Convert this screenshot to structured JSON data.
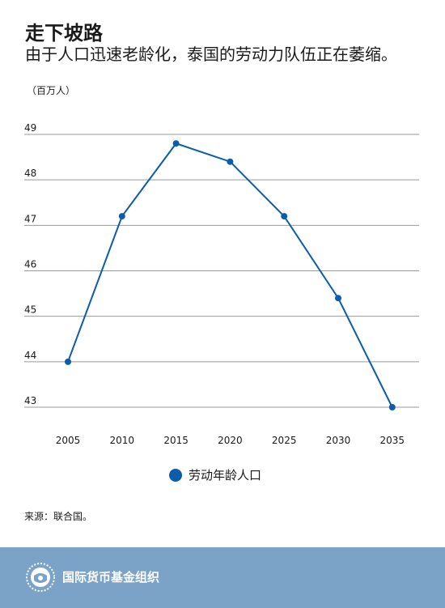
{
  "header": {
    "title": "走下坡路",
    "subtitle": "由于人口迅速老龄化，泰国的劳动力队伍正在萎缩。",
    "unit": "（百万人）"
  },
  "legend": {
    "label": "劳动年龄人口"
  },
  "source": "来源：联合国。",
  "footer": {
    "org_name": "国际货币基金组织"
  },
  "colors": {
    "series": "#0b5cad",
    "footer_bg": "#7aa3c7",
    "grid": "#9a9a9a"
  },
  "chart_data": {
    "type": "line",
    "title": "走下坡路",
    "subtitle": "由于人口迅速老龄化，泰国的劳动力队伍正在萎缩。",
    "ylabel": "（百万人）",
    "xlabel": "",
    "x": [
      "2005",
      "2010",
      "2015",
      "2020",
      "2025",
      "2030",
      "2035"
    ],
    "y_ticks": [
      "49",
      "48",
      "47",
      "46",
      "45",
      "44",
      "43"
    ],
    "ylim": [
      43,
      49
    ],
    "grid": true,
    "legend_position": "bottom",
    "series": [
      {
        "name": "劳动年龄人口",
        "values": [
          44.0,
          47.2,
          48.8,
          48.4,
          47.2,
          45.4,
          43.0
        ]
      }
    ]
  }
}
